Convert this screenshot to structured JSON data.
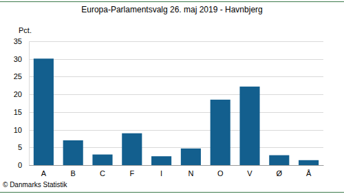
{
  "chart_data": {
    "type": "bar",
    "title": "Europa-Parlamentsvalg 26. maj 2019 - Havnbjerg",
    "y_label": "Pct.",
    "annotations": [
      "© Danmarks Statistik"
    ],
    "categories": [
      "A",
      "B",
      "C",
      "F",
      "I",
      "N",
      "O",
      "V",
      "Ø",
      "Å"
    ],
    "values": [
      30.1,
      7.0,
      3.0,
      9.0,
      2.5,
      4.7,
      18.5,
      22.2,
      2.8,
      1.4
    ],
    "color": "#135f8e",
    "ylim": [
      0,
      35
    ],
    "yticks": [
      0,
      5,
      10,
      15,
      20,
      25,
      30,
      35
    ],
    "grid": true
  }
}
